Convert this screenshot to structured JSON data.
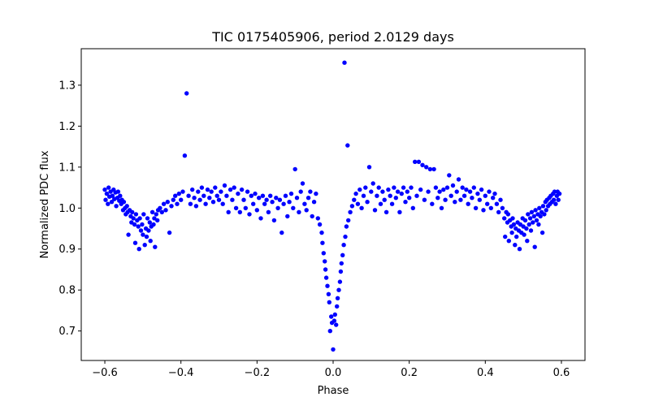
{
  "chart_data": {
    "type": "scatter",
    "title": "TIC 0175405906, period 2.0129 days",
    "xlabel": "Phase",
    "ylabel": "Normalized PDC flux",
    "xlim": [
      -0.662,
      0.662
    ],
    "ylim": [
      0.628,
      1.389
    ],
    "x_ticks": [
      -0.6,
      -0.4,
      -0.2,
      0.0,
      0.2,
      0.4,
      0.6
    ],
    "x_tick_labels": [
      "−0.6",
      "−0.4",
      "−0.2",
      "0.0",
      "0.2",
      "0.4",
      "0.6"
    ],
    "y_ticks": [
      0.7,
      0.8,
      0.9,
      1.0,
      1.1,
      1.2,
      1.3
    ],
    "y_tick_labels": [
      "0.7",
      "0.8",
      "0.9",
      "1.0",
      "1.1",
      "1.2",
      "1.3"
    ],
    "grid": false,
    "marker_color": "#0000ff",
    "series": [
      {
        "points": [
          [
            -0.6,
            1.045
          ],
          [
            -0.598,
            1.02
          ],
          [
            -0.595,
            1.035
          ],
          [
            -0.592,
            1.01
          ],
          [
            -0.59,
            1.05
          ],
          [
            -0.588,
            1.028
          ],
          [
            -0.585,
            1.04
          ],
          [
            -0.582,
            1.015
          ],
          [
            -0.58,
            1.03
          ],
          [
            -0.577,
            1.045
          ],
          [
            -0.575,
            1.022
          ],
          [
            -0.572,
            1.038
          ],
          [
            -0.57,
            1.005
          ],
          [
            -0.567,
            1.025
          ],
          [
            -0.565,
            1.04
          ],
          [
            -0.562,
            1.018
          ],
          [
            -0.56,
            1.03
          ],
          [
            -0.557,
            1.01
          ],
          [
            -0.555,
            1.02
          ],
          [
            -0.552,
            0.995
          ],
          [
            -0.55,
            1.015
          ],
          [
            -0.547,
            1.0
          ],
          [
            -0.545,
            0.985
          ],
          [
            -0.542,
            1.005
          ],
          [
            -0.54,
            0.99
          ],
          [
            -0.538,
            0.935
          ],
          [
            -0.535,
            0.995
          ],
          [
            -0.532,
            0.98
          ],
          [
            -0.53,
            0.965
          ],
          [
            -0.528,
            0.99
          ],
          [
            -0.525,
            0.975
          ],
          [
            -0.522,
            0.96
          ],
          [
            -0.52,
            0.915
          ],
          [
            -0.518,
            0.985
          ],
          [
            -0.515,
            0.97
          ],
          [
            -0.512,
            0.955
          ],
          [
            -0.51,
            0.9
          ],
          [
            -0.508,
            0.975
          ],
          [
            -0.505,
            0.945
          ],
          [
            -0.502,
            0.96
          ],
          [
            -0.5,
            0.935
          ],
          [
            -0.498,
            0.985
          ],
          [
            -0.495,
            0.91
          ],
          [
            -0.492,
            0.95
          ],
          [
            -0.49,
            0.93
          ],
          [
            -0.488,
            0.975
          ],
          [
            -0.485,
            0.945
          ],
          [
            -0.482,
            0.965
          ],
          [
            -0.48,
            0.92
          ],
          [
            -0.478,
            0.955
          ],
          [
            -0.475,
            0.99
          ],
          [
            -0.472,
            0.96
          ],
          [
            -0.47,
            0.975
          ],
          [
            -0.468,
            0.905
          ],
          [
            -0.465,
            0.985
          ],
          [
            -0.462,
            0.97
          ],
          [
            -0.46,
            0.995
          ],
          [
            -0.455,
            1.0
          ],
          [
            -0.45,
            0.99
          ],
          [
            -0.445,
            1.01
          ],
          [
            -0.44,
            0.995
          ],
          [
            -0.435,
            1.015
          ],
          [
            -0.43,
            0.94
          ],
          [
            -0.425,
            1.005
          ],
          [
            -0.42,
            1.02
          ],
          [
            -0.415,
            1.03
          ],
          [
            -0.41,
            1.01
          ],
          [
            -0.405,
            1.035
          ],
          [
            -0.4,
            1.02
          ],
          [
            -0.395,
            1.04
          ],
          [
            -0.39,
            1.128
          ],
          [
            -0.385,
            1.28
          ],
          [
            -0.38,
            1.03
          ],
          [
            -0.375,
            1.01
          ],
          [
            -0.37,
            1.045
          ],
          [
            -0.365,
            1.025
          ],
          [
            -0.36,
            1.005
          ],
          [
            -0.355,
            1.04
          ],
          [
            -0.35,
            1.02
          ],
          [
            -0.345,
            1.05
          ],
          [
            -0.34,
            1.03
          ],
          [
            -0.335,
            1.01
          ],
          [
            -0.33,
            1.045
          ],
          [
            -0.325,
            1.025
          ],
          [
            -0.32,
            1.04
          ],
          [
            -0.315,
            1.015
          ],
          [
            -0.31,
            1.05
          ],
          [
            -0.305,
            1.03
          ],
          [
            -0.3,
            1.02
          ],
          [
            -0.295,
            1.04
          ],
          [
            -0.29,
            1.01
          ],
          [
            -0.285,
            1.055
          ],
          [
            -0.28,
            1.03
          ],
          [
            -0.275,
            0.99
          ],
          [
            -0.27,
            1.045
          ],
          [
            -0.265,
            1.02
          ],
          [
            -0.26,
            1.05
          ],
          [
            -0.255,
            1.0
          ],
          [
            -0.25,
            1.035
          ],
          [
            -0.245,
            0.99
          ],
          [
            -0.24,
            1.045
          ],
          [
            -0.235,
            1.02
          ],
          [
            -0.23,
            1.0
          ],
          [
            -0.225,
            1.04
          ],
          [
            -0.22,
            0.985
          ],
          [
            -0.215,
            1.03
          ],
          [
            -0.21,
            1.01
          ],
          [
            -0.205,
            1.035
          ],
          [
            -0.2,
            0.995
          ],
          [
            -0.195,
            1.025
          ],
          [
            -0.19,
            0.975
          ],
          [
            -0.185,
            1.03
          ],
          [
            -0.18,
            1.01
          ],
          [
            -0.175,
            1.02
          ],
          [
            -0.17,
            0.99
          ],
          [
            -0.165,
            1.03
          ],
          [
            -0.16,
            1.015
          ],
          [
            -0.155,
            0.97
          ],
          [
            -0.15,
            1.025
          ],
          [
            -0.145,
            1.0
          ],
          [
            -0.14,
            1.02
          ],
          [
            -0.135,
            0.94
          ],
          [
            -0.13,
            1.01
          ],
          [
            -0.125,
            1.03
          ],
          [
            -0.12,
            0.98
          ],
          [
            -0.115,
            1.015
          ],
          [
            -0.11,
            1.035
          ],
          [
            -0.105,
            1.0
          ],
          [
            -0.1,
            1.095
          ],
          [
            -0.095,
            1.025
          ],
          [
            -0.09,
            0.99
          ],
          [
            -0.085,
            1.04
          ],
          [
            -0.08,
            1.06
          ],
          [
            -0.075,
            1.01
          ],
          [
            -0.07,
            0.995
          ],
          [
            -0.065,
            1.025
          ],
          [
            -0.06,
            1.04
          ],
          [
            -0.055,
            0.98
          ],
          [
            -0.05,
            1.015
          ],
          [
            -0.045,
            1.035
          ],
          [
            -0.04,
            0.975
          ],
          [
            -0.035,
            0.96
          ],
          [
            -0.03,
            0.94
          ],
          [
            -0.028,
            0.915
          ],
          [
            -0.025,
            0.89
          ],
          [
            -0.022,
            0.87
          ],
          [
            -0.02,
            0.85
          ],
          [
            -0.018,
            0.83
          ],
          [
            -0.015,
            0.81
          ],
          [
            -0.012,
            0.79
          ],
          [
            -0.01,
            0.77
          ],
          [
            -0.008,
            0.7
          ],
          [
            -0.005,
            0.735
          ],
          [
            -0.003,
            0.72
          ],
          [
            0.0,
            0.655
          ],
          [
            0.003,
            0.725
          ],
          [
            0.005,
            0.74
          ],
          [
            0.008,
            0.715
          ],
          [
            0.01,
            0.76
          ],
          [
            0.012,
            0.78
          ],
          [
            0.015,
            0.8
          ],
          [
            0.018,
            0.82
          ],
          [
            0.02,
            0.845
          ],
          [
            0.022,
            0.865
          ],
          [
            0.025,
            0.885
          ],
          [
            0.028,
            0.91
          ],
          [
            0.03,
            1.355
          ],
          [
            0.032,
            0.93
          ],
          [
            0.035,
            0.955
          ],
          [
            0.038,
            1.153
          ],
          [
            0.04,
            0.97
          ],
          [
            0.045,
            0.99
          ],
          [
            0.05,
            1.005
          ],
          [
            0.055,
            1.02
          ],
          [
            0.06,
            1.035
          ],
          [
            0.065,
            1.01
          ],
          [
            0.07,
            1.045
          ],
          [
            0.075,
            1.0
          ],
          [
            0.08,
            1.03
          ],
          [
            0.085,
            1.05
          ],
          [
            0.09,
            1.015
          ],
          [
            0.095,
            1.1
          ],
          [
            0.1,
            1.04
          ],
          [
            0.105,
            1.06
          ],
          [
            0.11,
            0.995
          ],
          [
            0.115,
            1.03
          ],
          [
            0.12,
            1.05
          ],
          [
            0.125,
            1.01
          ],
          [
            0.13,
            1.04
          ],
          [
            0.135,
            1.02
          ],
          [
            0.14,
            0.99
          ],
          [
            0.145,
            1.045
          ],
          [
            0.15,
            1.03
          ],
          [
            0.155,
            1.01
          ],
          [
            0.16,
            1.05
          ],
          [
            0.165,
            1.025
          ],
          [
            0.17,
            1.04
          ],
          [
            0.175,
            0.99
          ],
          [
            0.18,
            1.035
          ],
          [
            0.185,
            1.05
          ],
          [
            0.19,
            1.015
          ],
          [
            0.195,
            1.04
          ],
          [
            0.2,
            1.025
          ],
          [
            0.205,
            1.05
          ],
          [
            0.21,
            1.0
          ],
          [
            0.215,
            1.113
          ],
          [
            0.22,
            1.03
          ],
          [
            0.225,
            1.113
          ],
          [
            0.23,
            1.045
          ],
          [
            0.235,
            1.105
          ],
          [
            0.24,
            1.02
          ],
          [
            0.245,
            1.1
          ],
          [
            0.25,
            1.04
          ],
          [
            0.255,
            1.095
          ],
          [
            0.26,
            1.01
          ],
          [
            0.265,
            1.095
          ],
          [
            0.27,
            1.05
          ],
          [
            0.275,
            1.025
          ],
          [
            0.28,
            1.04
          ],
          [
            0.285,
            1.0
          ],
          [
            0.29,
            1.045
          ],
          [
            0.295,
            1.02
          ],
          [
            0.3,
            1.05
          ],
          [
            0.305,
            1.08
          ],
          [
            0.31,
            1.03
          ],
          [
            0.315,
            1.055
          ],
          [
            0.32,
            1.015
          ],
          [
            0.325,
            1.04
          ],
          [
            0.33,
            1.07
          ],
          [
            0.335,
            1.02
          ],
          [
            0.34,
            1.05
          ],
          [
            0.345,
            1.03
          ],
          [
            0.35,
            1.045
          ],
          [
            0.355,
            1.01
          ],
          [
            0.36,
            1.04
          ],
          [
            0.365,
            1.025
          ],
          [
            0.37,
            1.05
          ],
          [
            0.375,
            1.0
          ],
          [
            0.38,
            1.035
          ],
          [
            0.385,
            1.02
          ],
          [
            0.39,
            1.045
          ],
          [
            0.395,
            0.995
          ],
          [
            0.4,
            1.03
          ],
          [
            0.405,
            1.01
          ],
          [
            0.41,
            1.04
          ],
          [
            0.415,
            1.0
          ],
          [
            0.42,
            1.025
          ],
          [
            0.425,
            1.035
          ],
          [
            0.43,
            1.01
          ],
          [
            0.435,
            0.99
          ],
          [
            0.44,
            1.02
          ],
          [
            0.445,
            1.0
          ],
          [
            0.45,
            0.975
          ],
          [
            0.452,
            0.93
          ],
          [
            0.455,
            0.99
          ],
          [
            0.458,
            0.965
          ],
          [
            0.46,
            0.985
          ],
          [
            0.462,
            0.92
          ],
          [
            0.465,
            0.97
          ],
          [
            0.468,
            0.955
          ],
          [
            0.47,
            0.94
          ],
          [
            0.472,
            0.975
          ],
          [
            0.475,
            0.96
          ],
          [
            0.478,
            0.91
          ],
          [
            0.48,
            0.95
          ],
          [
            0.482,
            0.93
          ],
          [
            0.485,
            0.965
          ],
          [
            0.488,
            0.945
          ],
          [
            0.49,
            0.9
          ],
          [
            0.492,
            0.96
          ],
          [
            0.495,
            0.94
          ],
          [
            0.498,
            0.975
          ],
          [
            0.5,
            0.955
          ],
          [
            0.502,
            0.935
          ],
          [
            0.505,
            0.97
          ],
          [
            0.508,
            0.95
          ],
          [
            0.51,
            0.92
          ],
          [
            0.512,
            0.985
          ],
          [
            0.515,
            0.96
          ],
          [
            0.518,
            0.975
          ],
          [
            0.52,
            0.945
          ],
          [
            0.522,
            0.99
          ],
          [
            0.525,
            0.965
          ],
          [
            0.528,
            0.98
          ],
          [
            0.53,
            0.905
          ],
          [
            0.532,
            0.995
          ],
          [
            0.535,
            0.97
          ],
          [
            0.538,
            0.985
          ],
          [
            0.54,
            0.96
          ],
          [
            0.542,
            1.0
          ],
          [
            0.545,
            0.98
          ],
          [
            0.548,
            0.99
          ],
          [
            0.55,
            0.94
          ],
          [
            0.552,
            1.005
          ],
          [
            0.555,
            0.985
          ],
          [
            0.558,
            1.015
          ],
          [
            0.56,
            0.995
          ],
          [
            0.562,
            1.02
          ],
          [
            0.565,
            1.005
          ],
          [
            0.568,
            1.025
          ],
          [
            0.57,
            1.01
          ],
          [
            0.572,
            1.03
          ],
          [
            0.575,
            1.015
          ],
          [
            0.578,
            1.035
          ],
          [
            0.58,
            1.02
          ],
          [
            0.582,
            1.04
          ],
          [
            0.585,
            1.01
          ],
          [
            0.588,
            1.03
          ],
          [
            0.59,
            1.04
          ],
          [
            0.592,
            1.02
          ],
          [
            0.595,
            1.035
          ]
        ]
      }
    ]
  }
}
